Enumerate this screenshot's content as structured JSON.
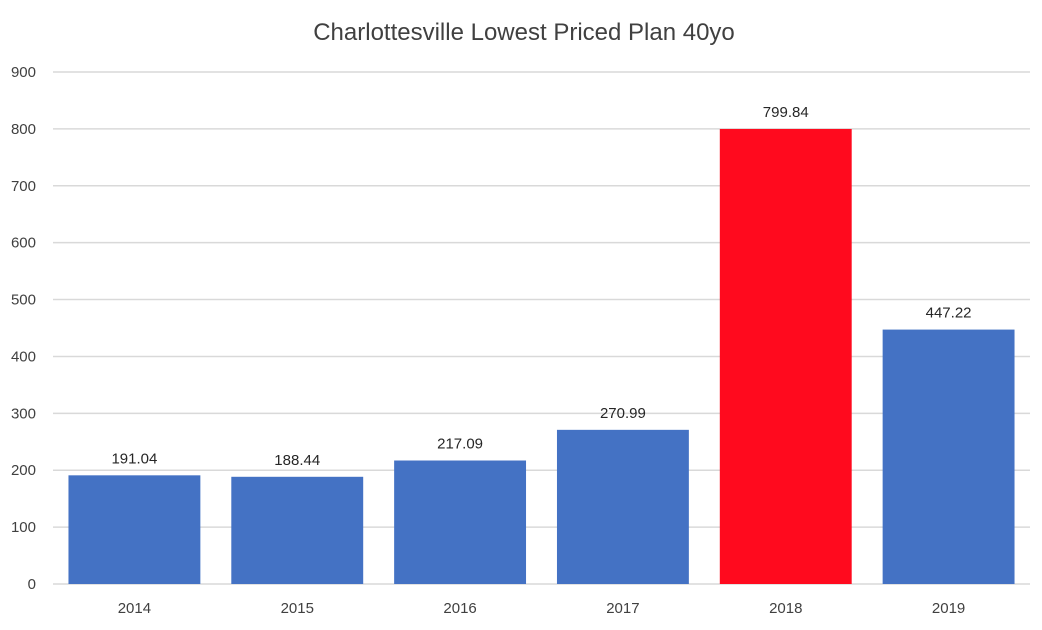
{
  "chart_data": {
    "type": "bar",
    "title": "Charlottesville Lowest Priced Plan 40yo",
    "categories": [
      "2014",
      "2015",
      "2016",
      "2017",
      "2018",
      "2019"
    ],
    "values": [
      191.04,
      188.44,
      217.09,
      270.99,
      799.84,
      447.22
    ],
    "data_labels": [
      "191.04",
      "188.44",
      "217.09",
      "270.99",
      "799.84",
      "447.22"
    ],
    "xlabel": "",
    "ylabel": "",
    "ylim": [
      0,
      900
    ],
    "yticks": [
      "0",
      "100",
      "200",
      "300",
      "400",
      "500",
      "600",
      "700",
      "800",
      "900"
    ],
    "grid": true,
    "legend": "none",
    "colors": {
      "default_bar": "#4472C4",
      "highlight_bar": "#FF0A1E",
      "highlight_category": "2018",
      "gridline": "#D9D9D9"
    }
  }
}
